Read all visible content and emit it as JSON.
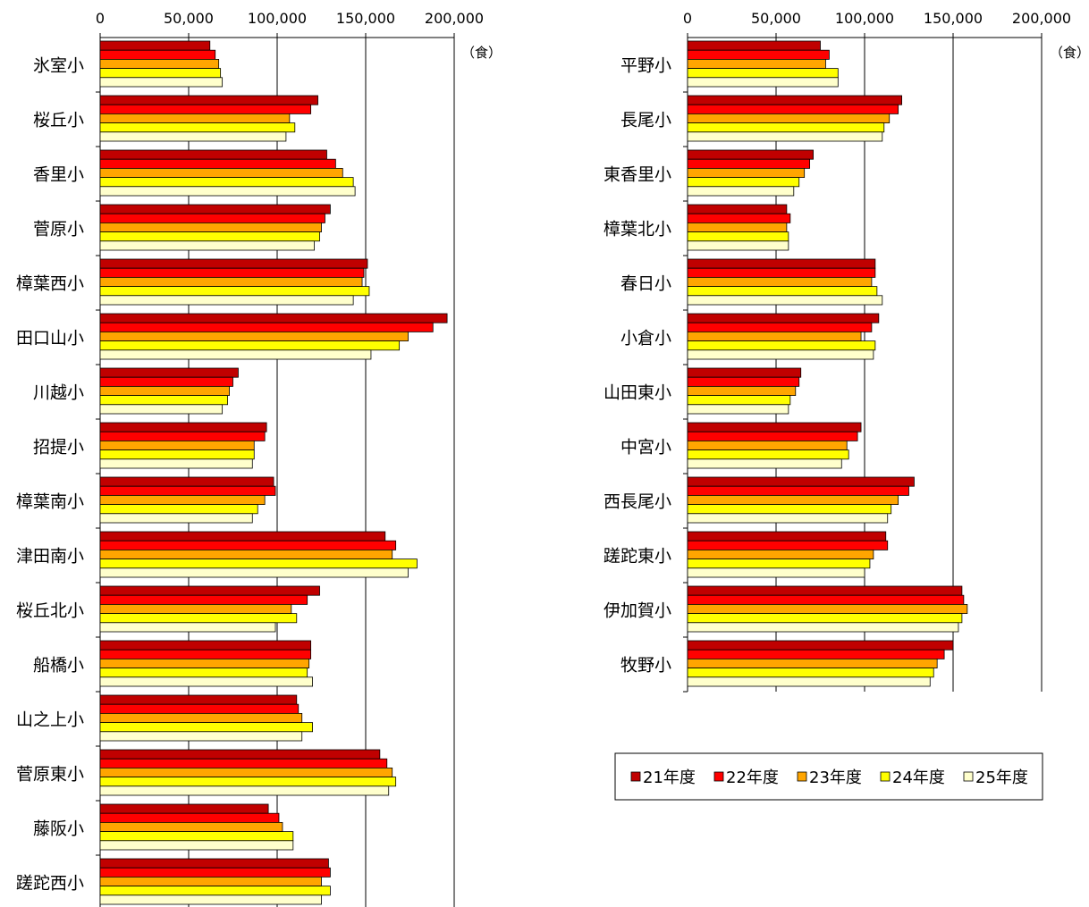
{
  "chart_data": [
    {
      "type": "bar",
      "orientation": "horizontal",
      "unit_label": "（食）",
      "xlim": [
        0,
        200000
      ],
      "xticks": [
        "0",
        "50,000",
        "100,000",
        "150,000",
        "200,000"
      ],
      "grid": "vertical",
      "categories": [
        "氷室小",
        "桜丘小",
        "香里小",
        "菅原小",
        "樟葉西小",
        "田口山小",
        "川越小",
        "招提小",
        "樟葉南小",
        "津田南小",
        "桜丘北小",
        "船橋小",
        "山之上小",
        "菅原東小",
        "藤阪小",
        "蹉跎西小"
      ],
      "series": [
        {
          "name": "21年度",
          "values": [
            62000,
            123000,
            128000,
            130000,
            151000,
            196000,
            78000,
            94000,
            98000,
            161000,
            124000,
            119000,
            111000,
            158000,
            95000,
            129000
          ]
        },
        {
          "name": "22年度",
          "values": [
            65000,
            119000,
            133000,
            127000,
            149000,
            188000,
            75000,
            93000,
            99000,
            167000,
            117000,
            119000,
            112000,
            162000,
            101000,
            130000
          ]
        },
        {
          "name": "23年度",
          "values": [
            67000,
            107000,
            137000,
            125000,
            148000,
            174000,
            73000,
            87000,
            93000,
            165000,
            108000,
            118000,
            114000,
            165000,
            103000,
            125000
          ]
        },
        {
          "name": "24年度",
          "values": [
            68000,
            110000,
            143000,
            124000,
            152000,
            169000,
            72000,
            87000,
            89000,
            179000,
            111000,
            117000,
            120000,
            167000,
            109000,
            130000
          ]
        },
        {
          "name": "25年度",
          "values": [
            69000,
            105000,
            144000,
            121000,
            143000,
            153000,
            69000,
            86000,
            86000,
            174000,
            99000,
            120000,
            114000,
            163000,
            109000,
            125000
          ]
        }
      ]
    },
    {
      "type": "bar",
      "orientation": "horizontal",
      "unit_label": "（食）",
      "xlim": [
        0,
        200000
      ],
      "xticks": [
        "0",
        "50,000",
        "100,000",
        "150,000",
        "200,000"
      ],
      "grid": "vertical",
      "categories": [
        "平野小",
        "長尾小",
        "東香里小",
        "樟葉北小",
        "春日小",
        "小倉小",
        "山田東小",
        "中宮小",
        "西長尾小",
        "蹉跎東小",
        "伊加賀小",
        "牧野小"
      ],
      "series": [
        {
          "name": "21年度",
          "values": [
            75000,
            121000,
            71000,
            56000,
            106000,
            108000,
            64000,
            98000,
            128000,
            112000,
            155000,
            150000
          ]
        },
        {
          "name": "22年度",
          "values": [
            80000,
            119000,
            69000,
            58000,
            106000,
            104000,
            63000,
            96000,
            125000,
            113000,
            156000,
            145000
          ]
        },
        {
          "name": "23年度",
          "values": [
            78000,
            114000,
            66000,
            56000,
            104000,
            98000,
            61000,
            90000,
            119000,
            105000,
            158000,
            141000
          ]
        },
        {
          "name": "24年度",
          "values": [
            85000,
            111000,
            63000,
            57000,
            107000,
            106000,
            58000,
            91000,
            115000,
            103000,
            155000,
            139000
          ]
        },
        {
          "name": "25年度",
          "values": [
            85000,
            110000,
            60000,
            57000,
            110000,
            105000,
            57000,
            87000,
            113000,
            100000,
            153000,
            137000
          ]
        }
      ]
    }
  ],
  "legend": {
    "placement": "bottom-right",
    "colors": [
      "#c00000",
      "#ff0000",
      "#ffa500",
      "#ffff00",
      "#ffffcc"
    ],
    "items": [
      "21年度",
      "22年度",
      "23年度",
      "24年度",
      "25年度"
    ]
  }
}
